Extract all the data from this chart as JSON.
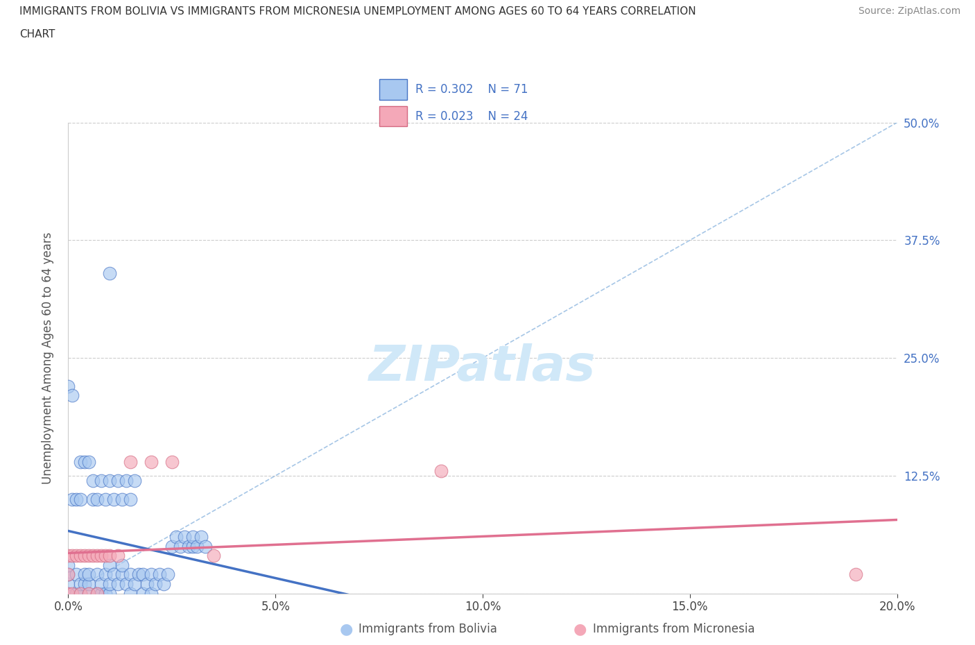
{
  "title_line1": "IMMIGRANTS FROM BOLIVIA VS IMMIGRANTS FROM MICRONESIA UNEMPLOYMENT AMONG AGES 60 TO 64 YEARS CORRELATION",
  "title_line2": "CHART",
  "source": "Source: ZipAtlas.com",
  "ylabel": "Unemployment Among Ages 60 to 64 years",
  "xlim": [
    0.0,
    0.2
  ],
  "ylim": [
    0.0,
    0.5
  ],
  "xticks": [
    0.0,
    0.05,
    0.1,
    0.15,
    0.2
  ],
  "yticks": [
    0.0,
    0.125,
    0.25,
    0.375,
    0.5
  ],
  "xticklabels": [
    "0.0%",
    "5.0%",
    "10.0%",
    "15.0%",
    "20.0%"
  ],
  "yticklabels_right": [
    "",
    "12.5%",
    "25.0%",
    "37.5%",
    "50.0%"
  ],
  "R_bolivia": 0.302,
  "N_bolivia": 71,
  "R_micronesia": 0.023,
  "N_micronesia": 24,
  "bolivia_fill": "#a8c8f0",
  "bolivia_edge": "#4472c4",
  "micronesia_fill": "#f4a8b8",
  "micronesia_edge": "#d46880",
  "bolivia_line_color": "#4472c4",
  "micronesia_line_color": "#e07090",
  "dashed_line_color": "#90b8e0",
  "watermark": "ZIPatlas",
  "watermark_color": "#d0e8f8",
  "bolivia_x": [
    0.0,
    0.0,
    0.0,
    0.0,
    0.002,
    0.002,
    0.003,
    0.003,
    0.004,
    0.004,
    0.005,
    0.005,
    0.005,
    0.007,
    0.007,
    0.008,
    0.008,
    0.009,
    0.009,
    0.01,
    0.01,
    0.01,
    0.011,
    0.012,
    0.013,
    0.013,
    0.014,
    0.015,
    0.015,
    0.016,
    0.017,
    0.018,
    0.018,
    0.019,
    0.02,
    0.02,
    0.021,
    0.022,
    0.023,
    0.024,
    0.025,
    0.026,
    0.027,
    0.028,
    0.029,
    0.03,
    0.03,
    0.031,
    0.032,
    0.033,
    0.0,
    0.001,
    0.001,
    0.002,
    0.003,
    0.003,
    0.004,
    0.005,
    0.006,
    0.006,
    0.007,
    0.008,
    0.009,
    0.01,
    0.011,
    0.012,
    0.013,
    0.014,
    0.015,
    0.016,
    0.01
  ],
  "bolivia_y": [
    0.0,
    0.01,
    0.02,
    0.03,
    0.0,
    0.02,
    0.0,
    0.01,
    0.01,
    0.02,
    0.0,
    0.01,
    0.02,
    0.0,
    0.02,
    0.0,
    0.01,
    0.0,
    0.02,
    0.0,
    0.01,
    0.03,
    0.02,
    0.01,
    0.02,
    0.03,
    0.01,
    0.0,
    0.02,
    0.01,
    0.02,
    0.0,
    0.02,
    0.01,
    0.0,
    0.02,
    0.01,
    0.02,
    0.01,
    0.02,
    0.05,
    0.06,
    0.05,
    0.06,
    0.05,
    0.05,
    0.06,
    0.05,
    0.06,
    0.05,
    0.22,
    0.21,
    0.1,
    0.1,
    0.1,
    0.14,
    0.14,
    0.14,
    0.1,
    0.12,
    0.1,
    0.12,
    0.1,
    0.12,
    0.1,
    0.12,
    0.1,
    0.12,
    0.1,
    0.12,
    0.34
  ],
  "micronesia_x": [
    0.0,
    0.0,
    0.0,
    0.001,
    0.001,
    0.002,
    0.003,
    0.003,
    0.004,
    0.005,
    0.005,
    0.006,
    0.007,
    0.007,
    0.008,
    0.009,
    0.01,
    0.012,
    0.015,
    0.02,
    0.025,
    0.035,
    0.19,
    0.09
  ],
  "micronesia_y": [
    0.0,
    0.02,
    0.04,
    0.0,
    0.04,
    0.04,
    0.0,
    0.04,
    0.04,
    0.0,
    0.04,
    0.04,
    0.0,
    0.04,
    0.04,
    0.04,
    0.04,
    0.04,
    0.14,
    0.14,
    0.14,
    0.04,
    0.02,
    0.13
  ]
}
